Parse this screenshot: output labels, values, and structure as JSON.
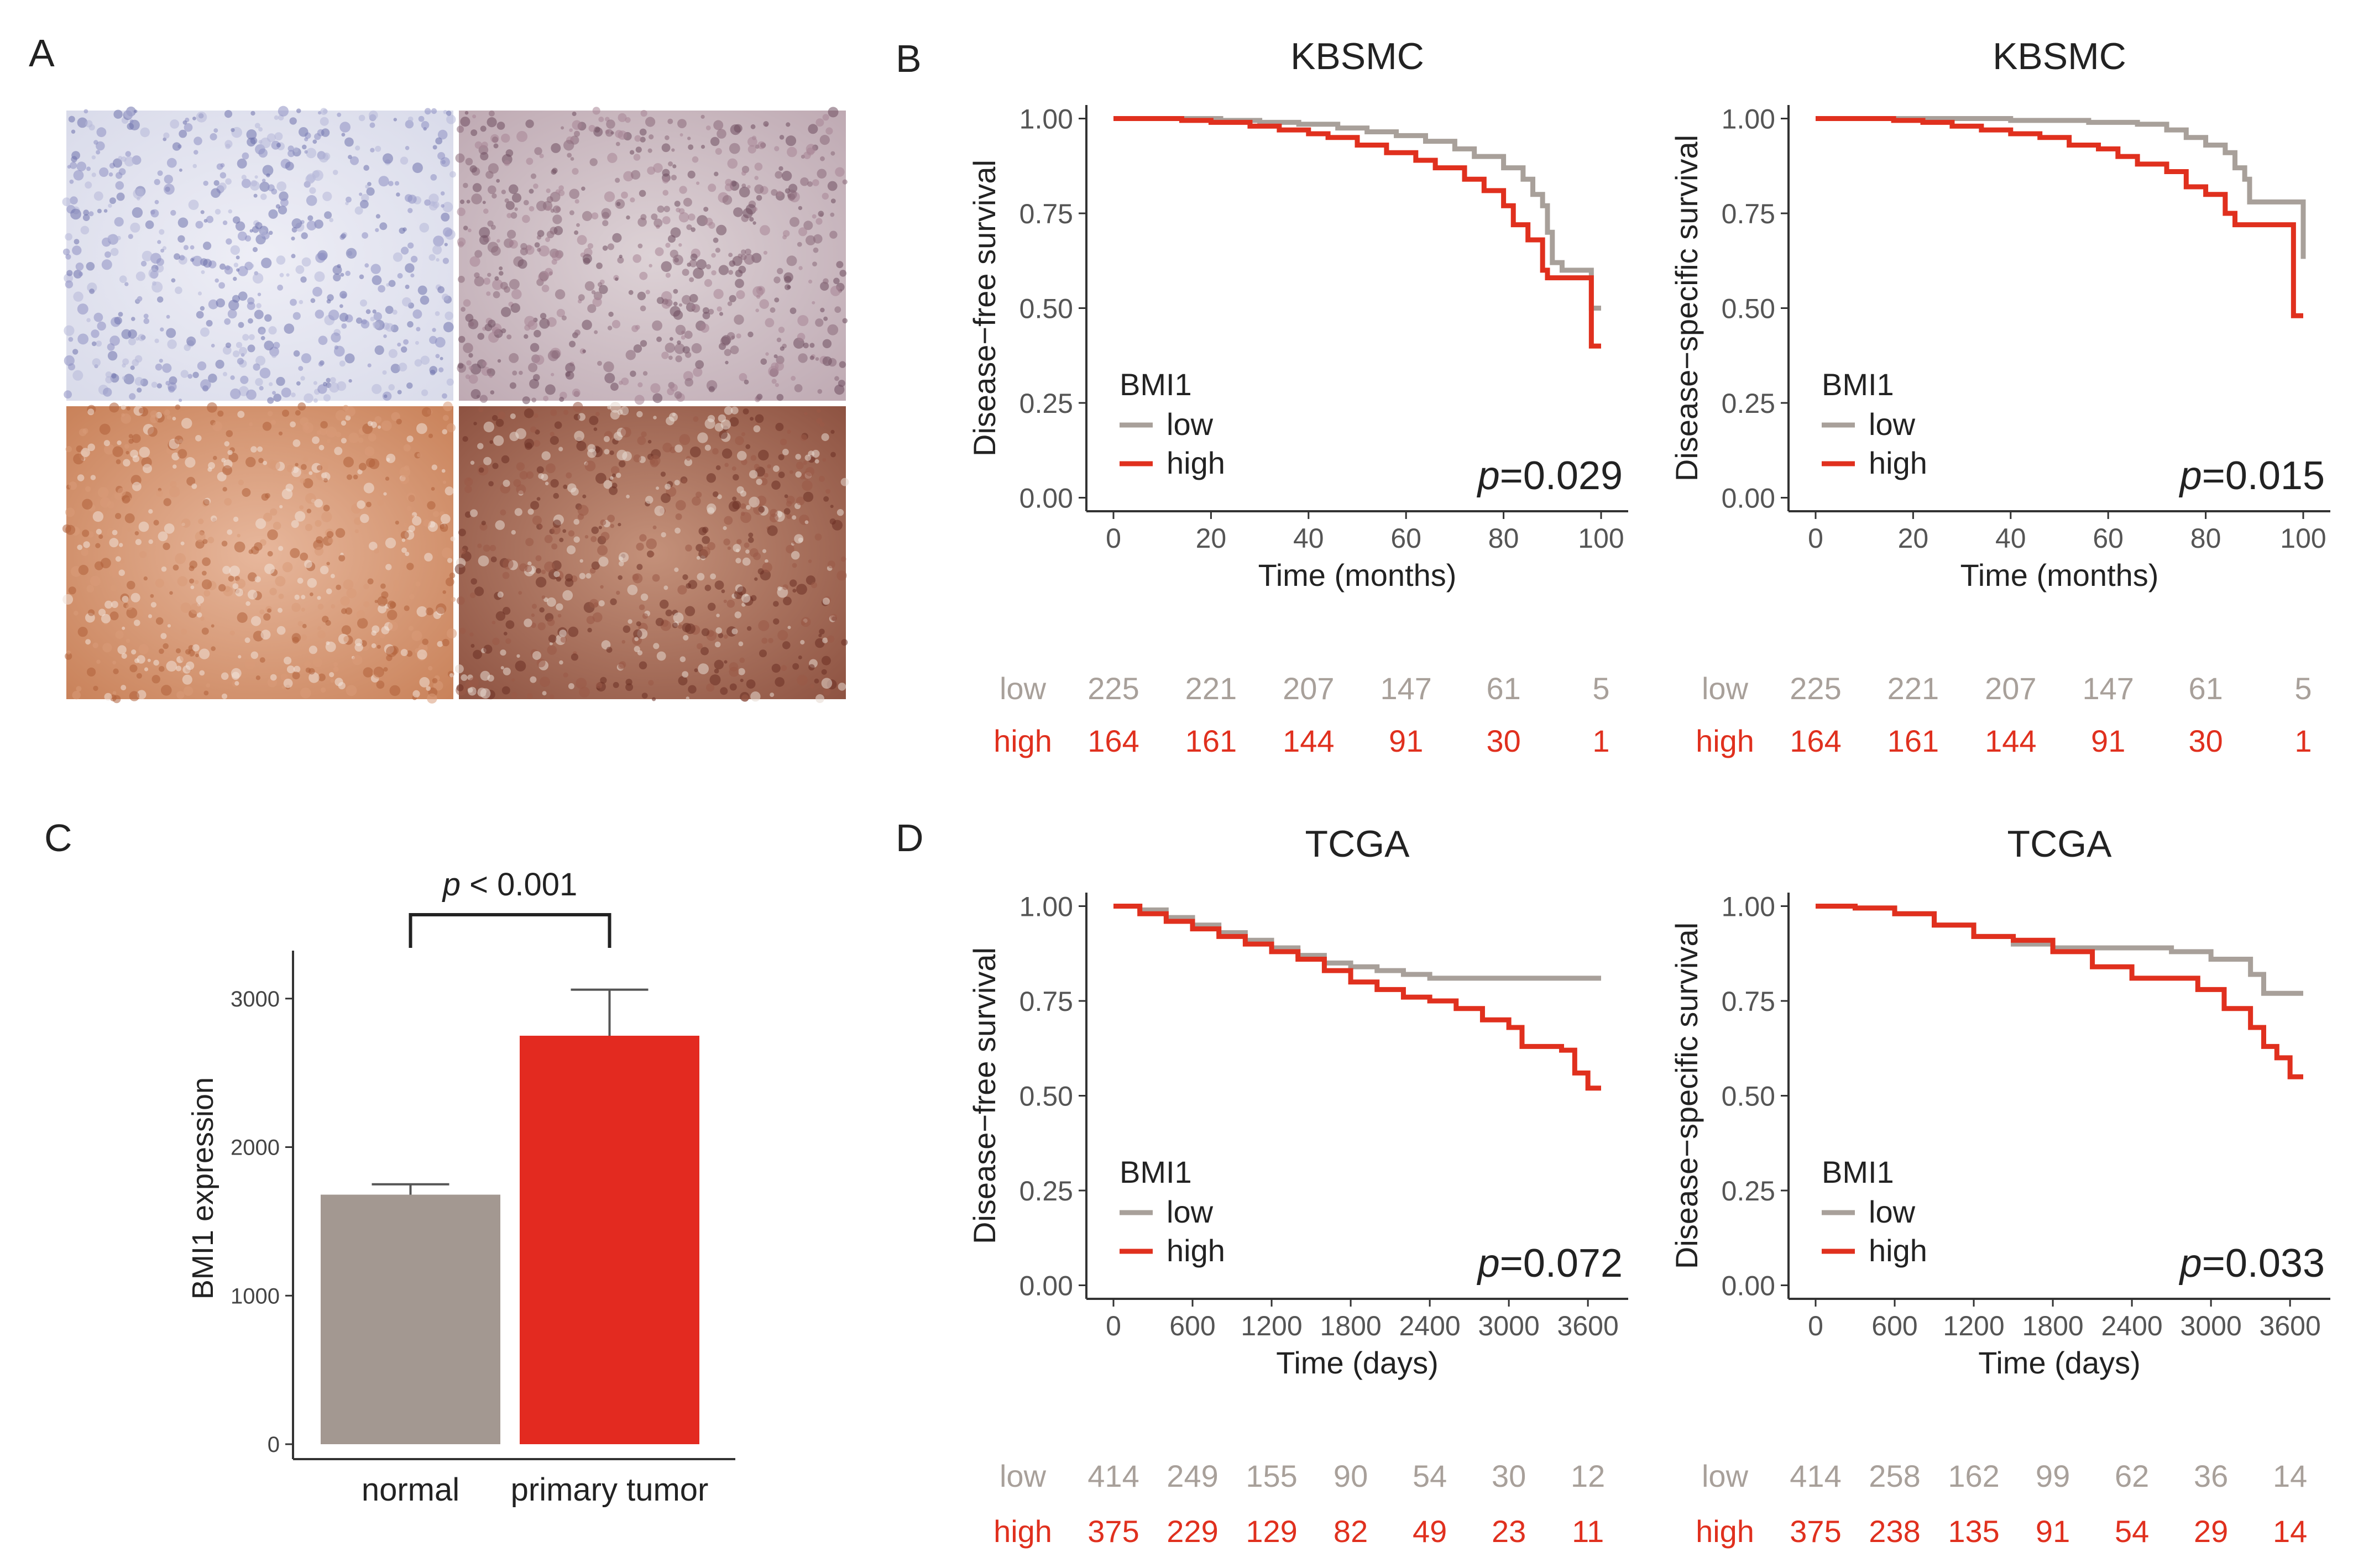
{
  "colors": {
    "low": "#a8a09a",
    "high": "#e0301e",
    "axis": "#333333",
    "text": "#222222",
    "normal_bar": "#a39891",
    "tumor_bar": "#e32a20"
  },
  "panel_labels": {
    "a": "A",
    "b": "B",
    "c": "C",
    "d": "D"
  },
  "ihc": {
    "description_tiles": [
      "negative",
      "weak",
      "moderate",
      "strong"
    ]
  },
  "chart_data": [
    {
      "id": "b_dfs",
      "type": "line",
      "title": "KBSMC",
      "xlabel": "Time (months)",
      "ylabel": "Disease−free survival",
      "xlim": [
        0,
        100
      ],
      "ylim": [
        0,
        1
      ],
      "xticks": [
        "0",
        "20",
        "40",
        "60",
        "80",
        "100"
      ],
      "yticks": [
        "0.00",
        "0.25",
        "0.50",
        "0.75",
        "1.00"
      ],
      "legend_title": "BMI1",
      "legend_placement": "bottom-left",
      "p_value_label": "p",
      "p_value": "=0.029",
      "series": [
        {
          "name": "low",
          "points": [
            [
              0,
              1
            ],
            [
              12,
              1
            ],
            [
              22,
              0.995
            ],
            [
              30,
              0.99
            ],
            [
              38,
              0.985
            ],
            [
              46,
              0.975
            ],
            [
              52,
              0.965
            ],
            [
              58,
              0.955
            ],
            [
              64,
              0.94
            ],
            [
              70,
              0.92
            ],
            [
              74,
              0.9
            ],
            [
              80,
              0.87
            ],
            [
              84,
              0.84
            ],
            [
              86,
              0.8
            ],
            [
              88,
              0.77
            ],
            [
              89,
              0.7
            ],
            [
              90,
              0.62
            ],
            [
              92,
              0.6
            ],
            [
              97,
              0.6
            ],
            [
              98,
              0.5
            ],
            [
              100,
              0.5
            ]
          ]
        },
        {
          "name": "high",
          "points": [
            [
              0,
              1
            ],
            [
              14,
              0.995
            ],
            [
              20,
              0.99
            ],
            [
              28,
              0.98
            ],
            [
              34,
              0.97
            ],
            [
              40,
              0.96
            ],
            [
              44,
              0.95
            ],
            [
              50,
              0.93
            ],
            [
              56,
              0.91
            ],
            [
              62,
              0.89
            ],
            [
              66,
              0.87
            ],
            [
              72,
              0.84
            ],
            [
              76,
              0.81
            ],
            [
              80,
              0.77
            ],
            [
              82,
              0.72
            ],
            [
              85,
              0.68
            ],
            [
              88,
              0.6
            ],
            [
              89,
              0.58
            ],
            [
              97,
              0.58
            ],
            [
              98,
              0.4
            ],
            [
              100,
              0.4
            ]
          ]
        }
      ],
      "risk_table": {
        "labels": [
          "low",
          "high"
        ],
        "low": [
          "225",
          "221",
          "207",
          "147",
          "61",
          "5"
        ],
        "high": [
          "164",
          "161",
          "144",
          "91",
          "30",
          "1"
        ]
      }
    },
    {
      "id": "b_dss",
      "type": "line",
      "title": "KBSMC",
      "xlabel": "Time (months)",
      "ylabel": "Disease−specific survival",
      "xlim": [
        0,
        100
      ],
      "ylim": [
        0,
        1
      ],
      "xticks": [
        "0",
        "20",
        "40",
        "60",
        "80",
        "100"
      ],
      "yticks": [
        "0.00",
        "0.25",
        "0.50",
        "0.75",
        "1.00"
      ],
      "legend_title": "BMI1",
      "legend_placement": "bottom-left",
      "p_value_label": "p",
      "p_value": "=0.015",
      "series": [
        {
          "name": "low",
          "points": [
            [
              0,
              1
            ],
            [
              20,
              1
            ],
            [
              40,
              0.995
            ],
            [
              56,
              0.99
            ],
            [
              66,
              0.985
            ],
            [
              72,
              0.97
            ],
            [
              76,
              0.95
            ],
            [
              80,
              0.93
            ],
            [
              84,
              0.91
            ],
            [
              86,
              0.87
            ],
            [
              88,
              0.84
            ],
            [
              89,
              0.78
            ],
            [
              97,
              0.78
            ],
            [
              100,
              0.63
            ]
          ]
        },
        {
          "name": "high",
          "points": [
            [
              0,
              1
            ],
            [
              16,
              0.995
            ],
            [
              22,
              0.99
            ],
            [
              28,
              0.98
            ],
            [
              34,
              0.97
            ],
            [
              40,
              0.96
            ],
            [
              46,
              0.95
            ],
            [
              52,
              0.93
            ],
            [
              58,
              0.92
            ],
            [
              62,
              0.9
            ],
            [
              66,
              0.88
            ],
            [
              72,
              0.86
            ],
            [
              76,
              0.82
            ],
            [
              80,
              0.8
            ],
            [
              84,
              0.75
            ],
            [
              86,
              0.72
            ],
            [
              97,
              0.72
            ],
            [
              98,
              0.48
            ],
            [
              100,
              0.48
            ]
          ]
        }
      ],
      "risk_table": {
        "labels": [
          "low",
          "high"
        ],
        "low": [
          "225",
          "221",
          "207",
          "147",
          "61",
          "5"
        ],
        "high": [
          "164",
          "161",
          "144",
          "91",
          "30",
          "1"
        ]
      }
    },
    {
      "id": "c_bar",
      "type": "bar",
      "title": "",
      "xlabel": "",
      "ylabel": "BMI1 expression",
      "ylim": [
        0,
        3200
      ],
      "yticks": [
        "0",
        "1000",
        "2000",
        "3000"
      ],
      "categories": [
        "normal",
        "primary tumor"
      ],
      "values": [
        1680,
        2750
      ],
      "errors": [
        70,
        310
      ],
      "significance_label": "p",
      "significance": " < 0.001"
    },
    {
      "id": "d_dfs",
      "type": "line",
      "title": "TCGA",
      "xlabel": "Time (days)",
      "ylabel": "Disease−free survival",
      "xlim": [
        0,
        3700
      ],
      "ylim": [
        0,
        1
      ],
      "xticks": [
        "0",
        "600",
        "1200",
        "1800",
        "2400",
        "3000",
        "3600"
      ],
      "yticks": [
        "0.00",
        "0.25",
        "0.50",
        "0.75",
        "1.00"
      ],
      "legend_title": "BMI1",
      "legend_placement": "bottom-left",
      "p_value_label": "p",
      "p_value": "=0.072",
      "series": [
        {
          "name": "low",
          "points": [
            [
              0,
              1
            ],
            [
              200,
              0.99
            ],
            [
              400,
              0.97
            ],
            [
              600,
              0.95
            ],
            [
              800,
              0.93
            ],
            [
              1000,
              0.91
            ],
            [
              1200,
              0.89
            ],
            [
              1400,
              0.87
            ],
            [
              1600,
              0.85
            ],
            [
              1800,
              0.84
            ],
            [
              2000,
              0.83
            ],
            [
              2200,
              0.82
            ],
            [
              2400,
              0.81
            ],
            [
              3700,
              0.81
            ]
          ]
        },
        {
          "name": "high",
          "points": [
            [
              0,
              1
            ],
            [
              200,
              0.98
            ],
            [
              400,
              0.96
            ],
            [
              600,
              0.94
            ],
            [
              800,
              0.92
            ],
            [
              1000,
              0.9
            ],
            [
              1200,
              0.88
            ],
            [
              1400,
              0.86
            ],
            [
              1600,
              0.83
            ],
            [
              1800,
              0.8
            ],
            [
              2000,
              0.78
            ],
            [
              2200,
              0.76
            ],
            [
              2400,
              0.75
            ],
            [
              2600,
              0.73
            ],
            [
              2800,
              0.7
            ],
            [
              3000,
              0.68
            ],
            [
              3100,
              0.63
            ],
            [
              3400,
              0.62
            ],
            [
              3500,
              0.56
            ],
            [
              3600,
              0.52
            ],
            [
              3700,
              0.52
            ]
          ]
        }
      ],
      "risk_table": {
        "labels": [
          "low",
          "high"
        ],
        "low": [
          "414",
          "249",
          "155",
          "90",
          "54",
          "30",
          "12"
        ],
        "high": [
          "375",
          "229",
          "129",
          "82",
          "49",
          "23",
          "11"
        ]
      }
    },
    {
      "id": "d_dss",
      "type": "line",
      "title": "TCGA",
      "xlabel": "Time (days)",
      "ylabel": "Disease−specific survival",
      "xlim": [
        0,
        3700
      ],
      "ylim": [
        0,
        1
      ],
      "xticks": [
        "0",
        "600",
        "1200",
        "1800",
        "2400",
        "3000",
        "3600"
      ],
      "yticks": [
        "0.00",
        "0.25",
        "0.50",
        "0.75",
        "1.00"
      ],
      "legend_title": "BMI1",
      "legend_placement": "bottom-left",
      "p_value_label": "p",
      "p_value": "=0.033",
      "series": [
        {
          "name": "low",
          "points": [
            [
              0,
              1
            ],
            [
              300,
              0.995
            ],
            [
              600,
              0.98
            ],
            [
              900,
              0.95
            ],
            [
              1200,
              0.92
            ],
            [
              1500,
              0.9
            ],
            [
              1800,
              0.89
            ],
            [
              2400,
              0.89
            ],
            [
              2700,
              0.88
            ],
            [
              3000,
              0.86
            ],
            [
              3300,
              0.82
            ],
            [
              3400,
              0.77
            ],
            [
              3700,
              0.77
            ]
          ]
        },
        {
          "name": "high",
          "points": [
            [
              0,
              1
            ],
            [
              300,
              0.995
            ],
            [
              600,
              0.98
            ],
            [
              900,
              0.95
            ],
            [
              1200,
              0.92
            ],
            [
              1500,
              0.91
            ],
            [
              1800,
              0.88
            ],
            [
              2100,
              0.84
            ],
            [
              2400,
              0.81
            ],
            [
              2700,
              0.81
            ],
            [
              2900,
              0.78
            ],
            [
              3100,
              0.73
            ],
            [
              3300,
              0.68
            ],
            [
              3400,
              0.63
            ],
            [
              3500,
              0.6
            ],
            [
              3600,
              0.55
            ],
            [
              3700,
              0.55
            ]
          ]
        }
      ],
      "risk_table": {
        "labels": [
          "low",
          "high"
        ],
        "low": [
          "414",
          "258",
          "162",
          "99",
          "62",
          "36",
          "14"
        ],
        "high": [
          "375",
          "238",
          "135",
          "91",
          "54",
          "29",
          "14"
        ]
      }
    }
  ]
}
